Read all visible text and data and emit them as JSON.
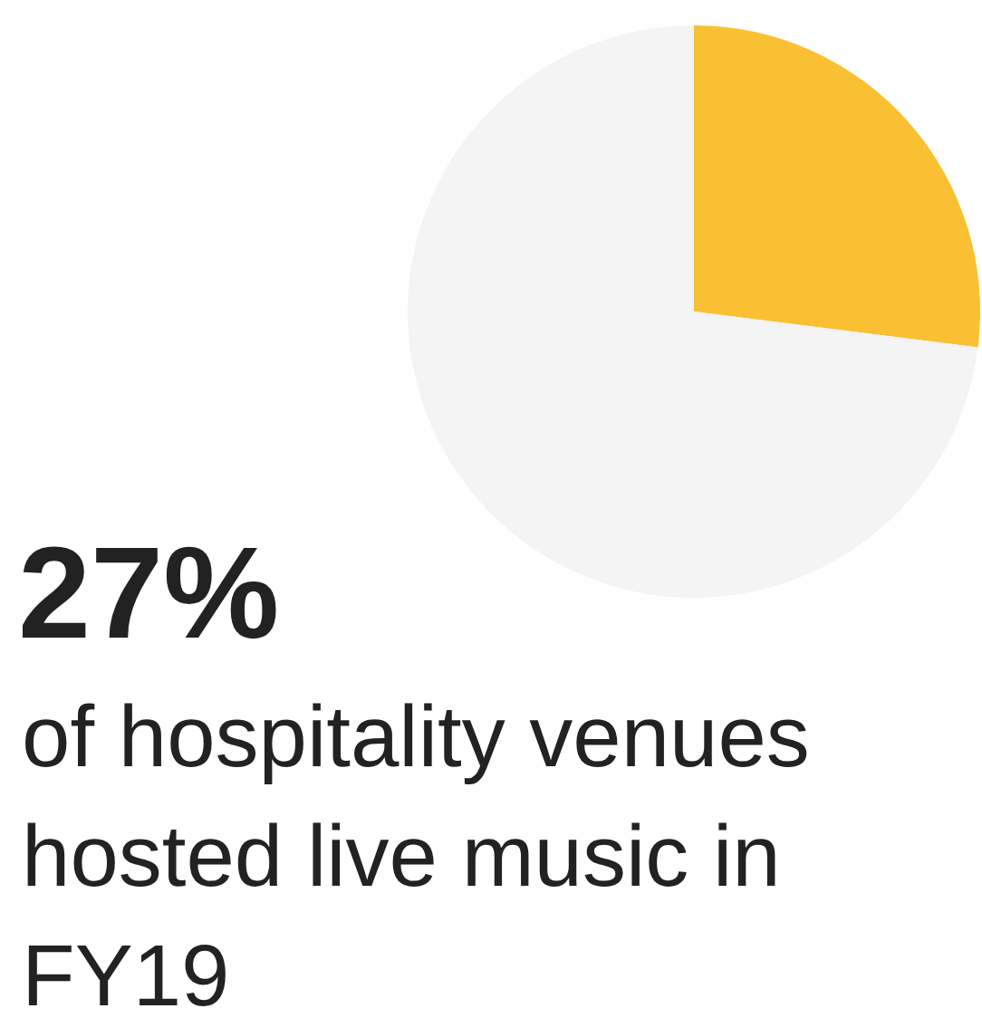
{
  "chart_data": {
    "type": "pie",
    "title": "27%",
    "subtitle": "of hospitality venues hosted live music in FY19",
    "categories": [
      null,
      null
    ],
    "values": [
      27,
      73
    ],
    "colors": [
      "#f9c033",
      "#f4f4f4"
    ]
  }
}
